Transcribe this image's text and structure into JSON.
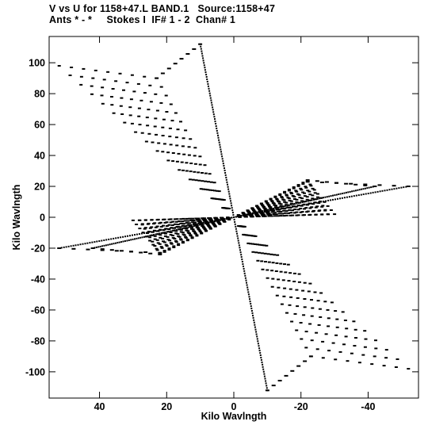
{
  "chart_data": {
    "type": "scatter",
    "title_line1": "V vs U for 1158+47.L BAND.1   Source:1158+47",
    "title_line2": "Ants * - *     Stokes I  IF# 1 - 2  Chan# 1",
    "xlabel": "Kilo Wavlngth",
    "ylabel": "Kilo Wavlngth",
    "xlim": [
      55,
      -55
    ],
    "ylim": [
      -117,
      117
    ],
    "x_inverted": true,
    "x_ticks": [
      40,
      20,
      0,
      -20,
      -40
    ],
    "x_tick_labels": [
      "40",
      "20",
      "0",
      "-20",
      "-40"
    ],
    "y_ticks": [
      100,
      80,
      60,
      40,
      20,
      0,
      -20,
      -40,
      -60,
      -80,
      -100
    ],
    "y_tick_labels": [
      "100",
      "80",
      "60",
      "40",
      "20",
      "0",
      "-20",
      "-40",
      "-60",
      "-80",
      "-100"
    ],
    "series": [
      {
        "arms": [
          {
            "end": [
              10,
              112
            ],
            "pivot": [
              23,
              90
            ],
            "tail": [
              52,
              98
            ]
          },
          {
            "end": [
              -52,
              20
            ],
            "pivot": [
              -22,
              23
            ],
            "tail": [
              -30,
              2
            ]
          },
          {
            "end": [
              42,
              -20
            ],
            "pivot": [
              22,
              -24
            ],
            "tail": [
              28,
              -2
            ]
          }
        ],
        "mirror": true,
        "tracks_per_arm": 16,
        "points_per_track": 9,
        "points_per_radial": 75
      }
    ],
    "marker_color": "#000000",
    "grid": false
  }
}
